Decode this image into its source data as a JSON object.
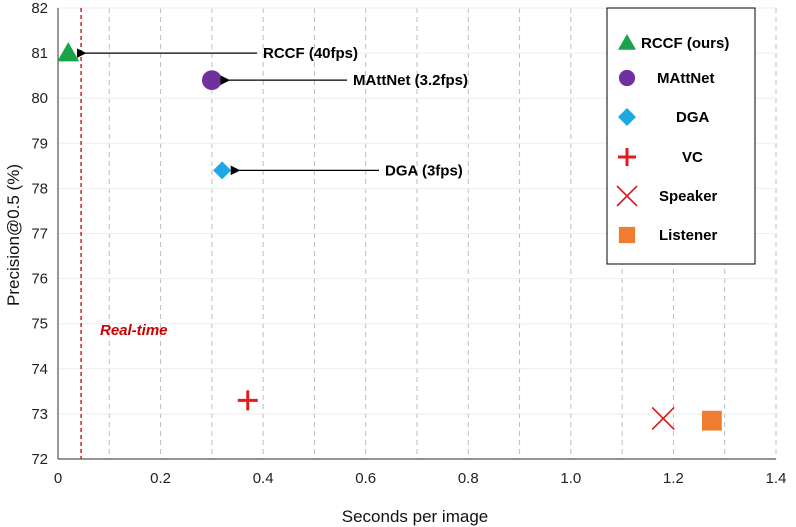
{
  "chart_data": {
    "type": "scatter",
    "xlabel": "Seconds  per  image",
    "ylabel": "Precision@0.5 (%)",
    "xlim": [
      0,
      1.4
    ],
    "ylim": [
      72,
      82
    ],
    "xticks": [
      "0",
      "0.2",
      "0.4",
      "0.6",
      "0.8",
      "1.0",
      "1.2",
      "1.4"
    ],
    "yticks": [
      "72",
      "73",
      "74",
      "75",
      "76",
      "77",
      "78",
      "79",
      "80",
      "81",
      "82"
    ],
    "grid": "vertical dashed",
    "legend_position": "top-right",
    "realtime_line": {
      "x": 0.045,
      "label": "Real-time",
      "color": "#cc0000"
    },
    "series": [
      {
        "name": "RCCF (ours)",
        "x": 0.02,
        "y": 81.0,
        "marker": "triangle",
        "color": "#1aa34a"
      },
      {
        "name": "MAttNet",
        "x": 0.3,
        "y": 80.4,
        "marker": "circle",
        "color": "#7030a0"
      },
      {
        "name": "DGA",
        "x": 0.32,
        "y": 78.4,
        "marker": "diamond",
        "color": "#1ca9e6"
      },
      {
        "name": "VC",
        "x": 0.37,
        "y": 73.3,
        "marker": "plus",
        "color": "#e41a1c"
      },
      {
        "name": "Speaker",
        "x": 1.18,
        "y": 72.9,
        "marker": "x",
        "color": "#d7191c"
      },
      {
        "name": "Listener",
        "x": 1.275,
        "y": 72.85,
        "marker": "square",
        "color": "#ef7d31"
      }
    ],
    "annotations": [
      {
        "text": "RCCF (40fps)",
        "x": 0.02,
        "y": 81.0
      },
      {
        "text": "MAttNet (3.2fps)",
        "x": 0.3,
        "y": 80.4
      },
      {
        "text": "DGA (3fps)",
        "x": 0.32,
        "y": 78.4
      }
    ]
  }
}
